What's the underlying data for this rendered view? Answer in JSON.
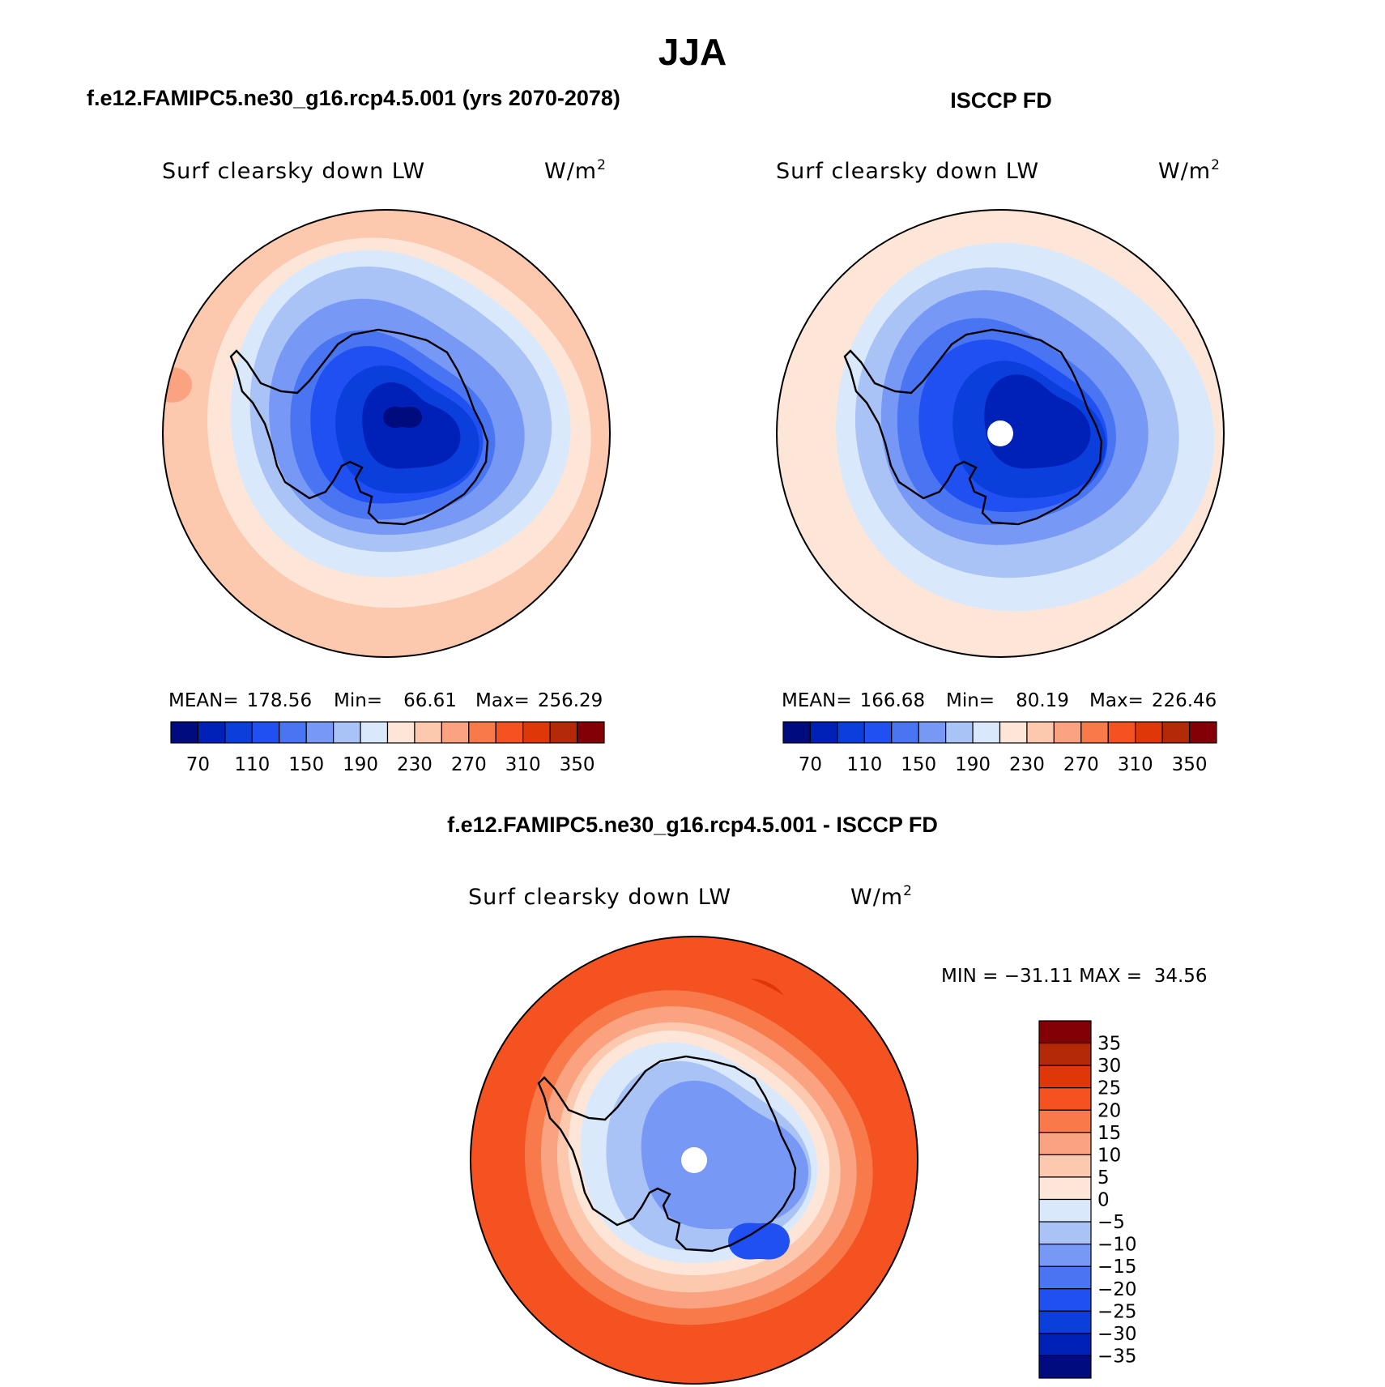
{
  "figure": {
    "title": "JJA"
  },
  "palette": {
    "blue_to_red": [
      "#000c7d",
      "#0021b8",
      "#0a3fdc",
      "#2150f2",
      "#4a75f2",
      "#7898f5",
      "#aac3f7",
      "#d9e9fb",
      "#fde6d8",
      "#fcc8ae",
      "#fba280",
      "#f87a4b",
      "#f55221",
      "#df3707",
      "#b42a08",
      "#830006"
    ],
    "land_outline": "#000000",
    "pole_dot": "#ffffff"
  },
  "chart_data": [
    {
      "type": "heatmap",
      "projection": "south-polar-stereographic",
      "header": "f.e12.FAMIPC5.ne30_g16.rcp4.5.001 (yrs 2070-2078)",
      "left_label": "Surf clearsky down LW",
      "units_prefix": "W/m",
      "units_exp": "2",
      "stats": [
        {
          "label": "MEAN=",
          "value": "178.56"
        },
        {
          "label": "Min=",
          "value": "66.61"
        },
        {
          "label": "Max=",
          "value": "256.29"
        }
      ],
      "colorbar": {
        "orientation": "horizontal",
        "levels": [
          70,
          90,
          110,
          130,
          150,
          170,
          190,
          210,
          230,
          250,
          270,
          290,
          310,
          330,
          350
        ],
        "tick_labels": [
          "70",
          "110",
          "150",
          "190",
          "230",
          "270",
          "310",
          "350"
        ]
      },
      "contour_bands": [
        {
          "level": 230,
          "color_index": 9
        },
        {
          "level": 220,
          "color_index": 8
        },
        {
          "level": 200,
          "color_index": 7
        },
        {
          "level": 180,
          "color_index": 6
        },
        {
          "level": 160,
          "color_index": 5
        },
        {
          "level": 140,
          "color_index": 4
        },
        {
          "level": 120,
          "color_index": 3
        },
        {
          "level": 100,
          "color_index": 2
        },
        {
          "level": 80,
          "color_index": 1
        },
        {
          "level": 66.61,
          "color_index": 0
        }
      ]
    },
    {
      "type": "heatmap",
      "projection": "south-polar-stereographic",
      "header": "ISCCP FD",
      "left_label": "Surf clearsky down LW",
      "units_prefix": "W/m",
      "units_exp": "2",
      "stats": [
        {
          "label": "MEAN=",
          "value": "166.68"
        },
        {
          "label": "Min=",
          "value": "80.19"
        },
        {
          "label": "Max=",
          "value": "226.46"
        }
      ],
      "colorbar": {
        "orientation": "horizontal",
        "levels": [
          70,
          90,
          110,
          130,
          150,
          170,
          190,
          210,
          230,
          250,
          270,
          290,
          310,
          330,
          350
        ],
        "tick_labels": [
          "70",
          "110",
          "150",
          "190",
          "230",
          "270",
          "310",
          "350"
        ]
      },
      "contour_bands": [
        {
          "level": 215,
          "color_index": 8
        },
        {
          "level": 200,
          "color_index": 7
        },
        {
          "level": 180,
          "color_index": 6
        },
        {
          "level": 160,
          "color_index": 5
        },
        {
          "level": 140,
          "color_index": 4
        },
        {
          "level": 120,
          "color_index": 3
        },
        {
          "level": 100,
          "color_index": 2
        },
        {
          "level": 85,
          "color_index": 1
        }
      ]
    },
    {
      "type": "heatmap",
      "projection": "south-polar-stereographic",
      "header": "f.e12.FAMIPC5.ne30_g16.rcp4.5.001 - ISCCP FD",
      "left_label": "Surf clearsky down LW",
      "units_prefix": "W/m",
      "units_exp": "2",
      "stats_line": "MIN = −31.11 MAX =  34.56",
      "colorbar": {
        "orientation": "vertical",
        "levels": [
          35,
          30,
          25,
          20,
          15,
          10,
          5,
          0,
          -5,
          -10,
          -15,
          -20,
          -25,
          -30,
          -35
        ],
        "tick_labels": [
          "35",
          "30",
          "25",
          "20",
          "15",
          "10",
          "5",
          "0",
          "−5",
          "−10",
          "−15",
          "−20",
          "−25",
          "−30",
          "−35"
        ]
      },
      "contour_bands": [
        {
          "level": 28,
          "color_index": 13
        },
        {
          "level": 22,
          "color_index": 12
        },
        {
          "level": 17,
          "color_index": 11
        },
        {
          "level": 12,
          "color_index": 10
        },
        {
          "level": 7,
          "color_index": 9
        },
        {
          "level": 2,
          "color_index": 8
        },
        {
          "level": -3,
          "color_index": 7
        },
        {
          "level": -8,
          "color_index": 6
        },
        {
          "level": -13,
          "color_index": 5
        },
        {
          "level": -22,
          "color_index": 3
        }
      ]
    }
  ]
}
